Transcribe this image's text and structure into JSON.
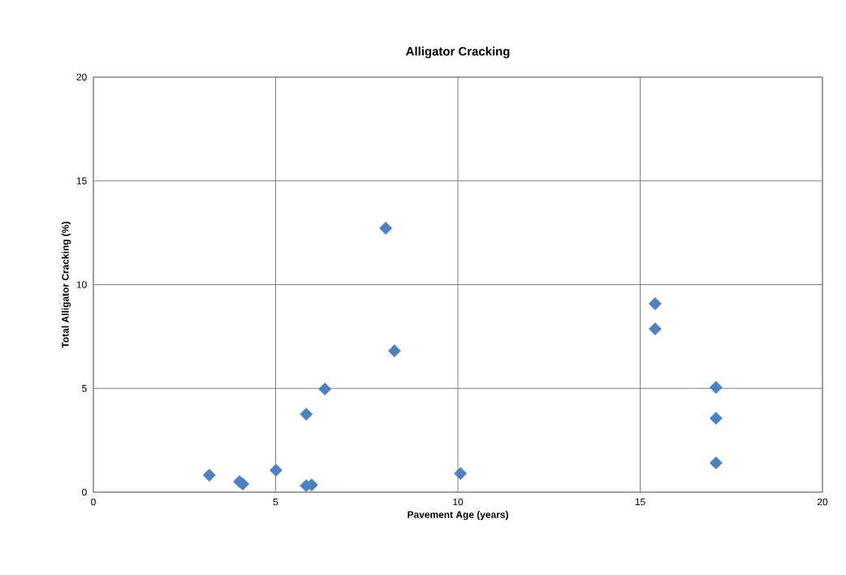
{
  "chart_data": {
    "type": "scatter",
    "title": "Alligator Cracking",
    "xlabel": "Pavement Age (years)",
    "ylabel": "Total Alligator Cracking (%)",
    "x": [
      3.18,
      4.01,
      4.1,
      5.01,
      5.84,
      5.84,
      5.99,
      6.35,
      8.02,
      8.26,
      10.07,
      15.41,
      15.41,
      17.08,
      17.08,
      17.08
    ],
    "values": [
      0.82,
      0.51,
      0.39,
      1.06,
      3.76,
      0.31,
      0.35,
      4.97,
      12.72,
      6.81,
      0.9,
      9.08,
      7.87,
      5.05,
      3.56,
      1.41
    ],
    "color": "#4f81bd",
    "marker": "diamond",
    "xlim": [
      0,
      20
    ],
    "ylim": [
      0,
      20
    ],
    "xticks": [
      0,
      5,
      10,
      15,
      20
    ],
    "yticks": [
      0,
      5,
      10,
      15,
      20
    ],
    "grid": true
  }
}
